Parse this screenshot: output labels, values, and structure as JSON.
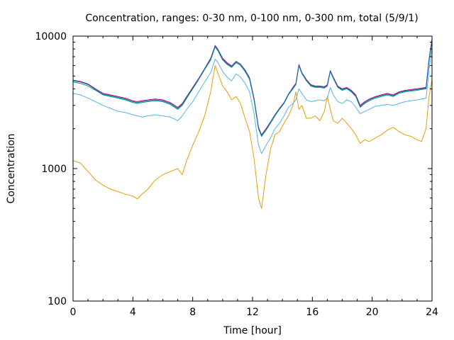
{
  "chart_data": {
    "type": "line",
    "title": "Concentration, ranges: 0-30 nm, 0-100 nm, 0-300 nm, total (5/9/1)",
    "xlabel": "Time [hour]",
    "ylabel": "Concentration",
    "xlim": [
      0,
      24
    ],
    "ylim": [
      100,
      10000
    ],
    "yscale": "log",
    "xticks": [
      0,
      4,
      8,
      12,
      16,
      20,
      24
    ],
    "xtick_labels": [
      "0",
      "4",
      "8",
      "12",
      "16",
      "20",
      "24"
    ],
    "yticks": [
      100,
      1000,
      10000
    ],
    "ytick_labels": [
      "100",
      "1000",
      "10000"
    ],
    "grid": false,
    "legend": "none",
    "x": [
      0,
      0.5,
      1,
      1.5,
      2,
      2.5,
      3,
      3.5,
      4,
      4.3,
      4.6,
      5,
      5.5,
      6,
      6.5,
      7,
      7.3,
      7.6,
      8,
      8.4,
      8.8,
      9.2,
      9.5,
      9.7,
      10,
      10.3,
      10.6,
      10.9,
      11.2,
      11.5,
      11.8,
      12.1,
      12.4,
      12.6,
      12.9,
      13.2,
      13.5,
      13.8,
      14.1,
      14.4,
      14.7,
      14.9,
      15.1,
      15.3,
      15.6,
      15.9,
      16.2,
      16.5,
      16.8,
      17.0,
      17.2,
      17.4,
      17.7,
      18.0,
      18.3,
      18.6,
      18.9,
      19.2,
      19.5,
      19.8,
      20.2,
      20.6,
      21.0,
      21.4,
      21.8,
      22.2,
      22.6,
      23.0,
      23.3,
      23.6,
      23.8,
      24.0
    ],
    "series": [
      {
        "name": "0-30 nm",
        "color": "#e6a000",
        "values": [
          1150,
          1100,
          950,
          820,
          750,
          700,
          670,
          640,
          620,
          590,
          640,
          700,
          820,
          900,
          950,
          1000,
          900,
          1150,
          1500,
          1900,
          2500,
          3800,
          6000,
          5200,
          4200,
          3800,
          3300,
          3500,
          3100,
          2400,
          1900,
          1200,
          600,
          500,
          900,
          1400,
          1800,
          1900,
          2200,
          2500,
          3000,
          3800,
          2800,
          3000,
          2400,
          2400,
          2500,
          2300,
          2700,
          3500,
          2800,
          2300,
          2200,
          2400,
          2200,
          2000,
          1800,
          1550,
          1650,
          1600,
          1700,
          1800,
          1950,
          2050,
          1900,
          1800,
          1750,
          1650,
          1600,
          2000,
          3500,
          4700
        ]
      },
      {
        "name": "0-100 nm",
        "color": "#56b4e9",
        "values": [
          3700,
          3600,
          3400,
          3200,
          3000,
          2850,
          2700,
          2650,
          2550,
          2500,
          2450,
          2500,
          2550,
          2500,
          2450,
          2300,
          2500,
          2800,
          3200,
          3800,
          4500,
          5300,
          6700,
          6300,
          5400,
          4900,
          4600,
          5200,
          4900,
          4400,
          3800,
          2600,
          1500,
          1300,
          1500,
          1700,
          2000,
          2200,
          2500,
          2900,
          3100,
          3300,
          4000,
          3700,
          3300,
          3200,
          3250,
          3300,
          3250,
          3400,
          4100,
          3600,
          3200,
          3100,
          3300,
          3200,
          2900,
          2600,
          2700,
          2800,
          2950,
          3000,
          3050,
          3000,
          3100,
          3200,
          3250,
          3300,
          3350,
          3400,
          5500,
          8300
        ]
      },
      {
        "name": "0-300 nm",
        "color": "#009e73",
        "values": [
          4500,
          4400,
          4200,
          3900,
          3600,
          3500,
          3400,
          3300,
          3150,
          3100,
          3150,
          3200,
          3250,
          3200,
          3050,
          2800,
          3000,
          3400,
          4000,
          4700,
          5600,
          6600,
          8300,
          7700,
          6600,
          6100,
          5800,
          6300,
          6000,
          5400,
          4700,
          3300,
          2000,
          1750,
          1950,
          2200,
          2500,
          2800,
          3100,
          3600,
          4000,
          4300,
          6000,
          5200,
          4600,
          4200,
          4100,
          4100,
          4050,
          4200,
          5400,
          4800,
          4100,
          3900,
          4000,
          3800,
          3500,
          2900,
          3100,
          3250,
          3400,
          3500,
          3600,
          3500,
          3700,
          3800,
          3850,
          3900,
          3950,
          4000,
          6500,
          9300
        ]
      },
      {
        "name": "total",
        "color": "#cc0080",
        "values": [
          4650,
          4550,
          4350,
          4000,
          3700,
          3600,
          3500,
          3400,
          3250,
          3200,
          3250,
          3300,
          3350,
          3300,
          3150,
          2900,
          3100,
          3500,
          4100,
          4800,
          5700,
          6800,
          8500,
          7900,
          6800,
          6300,
          5950,
          6450,
          6150,
          5550,
          4850,
          3400,
          2050,
          1800,
          2000,
          2250,
          2550,
          2850,
          3150,
          3650,
          4100,
          4400,
          6100,
          5300,
          4700,
          4300,
          4200,
          4200,
          4150,
          4300,
          5500,
          4900,
          4200,
          4000,
          4100,
          3900,
          3600,
          3000,
          3200,
          3350,
          3500,
          3600,
          3700,
          3600,
          3800,
          3900,
          3950,
          4000,
          4050,
          4100,
          6700,
          9500
        ]
      },
      {
        "name": "",
        "color": "#0072b2",
        "values": [
          4600,
          4500,
          4300,
          3950,
          3650,
          3550,
          3450,
          3350,
          3200,
          3150,
          3200,
          3250,
          3300,
          3250,
          3100,
          2850,
          3050,
          3450,
          4050,
          4750,
          5650,
          6700,
          8400,
          7800,
          6700,
          6200,
          5900,
          6400,
          6100,
          5500,
          4800,
          3350,
          2020,
          1780,
          1980,
          2230,
          2530,
          2830,
          3130,
          3630,
          4050,
          4350,
          6050,
          5250,
          4650,
          4250,
          4150,
          4150,
          4100,
          4250,
          5450,
          4850,
          4150,
          3950,
          4050,
          3850,
          3550,
          2950,
          3150,
          3300,
          3450,
          3550,
          3650,
          3550,
          3750,
          3850,
          3900,
          3950,
          4000,
          4050,
          6600,
          9400
        ]
      }
    ]
  }
}
